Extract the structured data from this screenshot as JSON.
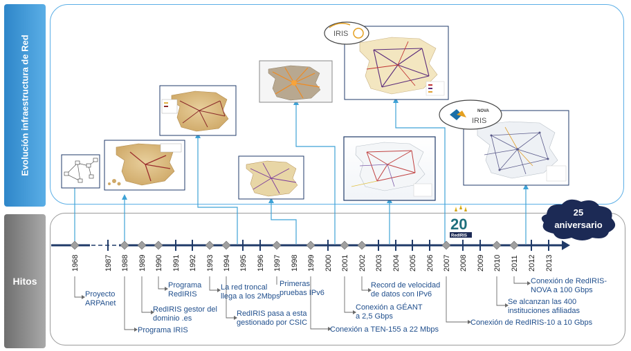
{
  "side_labels": {
    "top": "Evolución infraestructura de Red",
    "bottom": "Hitos"
  },
  "badge": {
    "line1": "25",
    "line2": "aniversario"
  },
  "logo20": {
    "number": "20",
    "brand": "RedIRIS"
  },
  "logos": {
    "iris10": "IRIS",
    "nova_top": "NOVA",
    "nova_brand": "IRIS"
  },
  "colors": {
    "axis": "#1f3a68",
    "marker": "#9a9a9a",
    "connector": "#3ea2d6",
    "panel_top": "#5aaee6",
    "side_top": "#2e86c9",
    "side_bottom": "#8a8a8a",
    "milestone_text": "#1f4e8c",
    "badge": "#1c2a55"
  },
  "years": [
    "1968",
    "1987",
    "1988",
    "1989",
    "1990",
    "1991",
    "1992",
    "1993",
    "1994",
    "1995",
    "1996",
    "1997",
    "1998",
    "1999",
    "2000",
    "2001",
    "2002",
    "2003",
    "2004",
    "2005",
    "2006",
    "2007",
    "2008",
    "2009",
    "2010",
    "2011",
    "2012",
    "2013"
  ],
  "milestones": [
    {
      "year": "1968",
      "lines": [
        "Proyecto",
        "ARPAnet"
      ]
    },
    {
      "year": "1988",
      "lines": [
        "Programa IRIS"
      ]
    },
    {
      "year": "1989",
      "lines": [
        "RedIRIS gestor del",
        "dominio .es"
      ]
    },
    {
      "year": "1990",
      "lines": [
        "Programa",
        "RedIRIS"
      ]
    },
    {
      "year": "1993",
      "lines": [
        "La red troncal",
        "llega a los 2Mbps"
      ]
    },
    {
      "year": "1994",
      "lines": [
        "RedIRIS pasa a esta",
        "gestionado por CSIC"
      ]
    },
    {
      "year": "1997",
      "lines": [
        "Primeras",
        "pruebas IPv6"
      ]
    },
    {
      "year": "1999",
      "lines": [
        "Conexión a TEN-155 a 22 Mbps"
      ]
    },
    {
      "year": "2001",
      "lines": [
        "Conexión a GÉANT",
        "a 2,5 Gbps"
      ]
    },
    {
      "year": "2002",
      "lines": [
        "Record de velocidad",
        "de datos con IPv6"
      ]
    },
    {
      "year": "2007",
      "lines": [
        "Conexión de RedIRIS-10 a 10 Gbps"
      ]
    },
    {
      "year": "2010",
      "lines": [
        "Se alcanzan las 400",
        "instituciones afiliadas"
      ]
    },
    {
      "year": "2011",
      "lines": [
        "Conexión de RedIRIS-",
        "NOVA a 100 Gbps"
      ]
    }
  ]
}
